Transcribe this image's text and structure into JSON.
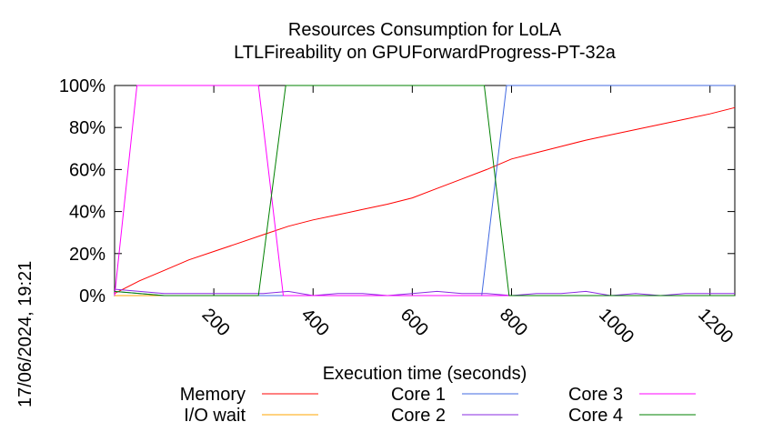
{
  "chart_data": {
    "type": "line",
    "title": "Resources Consumption for LoLA",
    "subtitle": "LTLFireability on GPUForwardProgress-PT-32a",
    "xlabel": "Execution time (seconds)",
    "ylabel": "",
    "timestamp": "17/06/2024, 19:21",
    "xlim": [
      0,
      1250
    ],
    "ylim": [
      0,
      100
    ],
    "xticks": [
      200,
      400,
      600,
      800,
      1000,
      1200
    ],
    "yticks": [
      0,
      20,
      40,
      60,
      80,
      100
    ],
    "ytick_suffix": "%",
    "grid": false,
    "legend_position": "bottom",
    "series": [
      {
        "name": "Memory",
        "color": "#ff0000",
        "x": [
          0,
          50,
          100,
          150,
          200,
          250,
          300,
          350,
          400,
          450,
          500,
          550,
          600,
          650,
          700,
          750,
          800,
          850,
          900,
          950,
          1000,
          1050,
          1100,
          1150,
          1200,
          1250
        ],
        "y": [
          1,
          7,
          12,
          17,
          21,
          25,
          29,
          33,
          36,
          38.5,
          41,
          43.5,
          46.5,
          51,
          55.5,
          60,
          65,
          68,
          71,
          74,
          76.5,
          79,
          81.5,
          84,
          86.5,
          89.5
        ]
      },
      {
        "name": "I/O wait",
        "color": "#ffa500",
        "x": [
          0,
          1250
        ],
        "y": [
          0,
          0
        ]
      },
      {
        "name": "Core 1",
        "color": "#4169e1",
        "x": [
          0,
          50,
          100,
          200,
          300,
          400,
          500,
          600,
          700,
          740,
          790,
          850,
          1000,
          1250
        ],
        "y": [
          2,
          1,
          0,
          0,
          0,
          0,
          0,
          0,
          0,
          0,
          100,
          100,
          100,
          100
        ]
      },
      {
        "name": "Core 2",
        "color": "#8a2be2",
        "x": [
          0,
          50,
          100,
          150,
          200,
          250,
          300,
          350,
          400,
          450,
          500,
          550,
          600,
          650,
          700,
          750,
          800,
          850,
          900,
          950,
          1000,
          1050,
          1100,
          1150,
          1200,
          1250
        ],
        "y": [
          3,
          2,
          1,
          1,
          1,
          1,
          1,
          2,
          0,
          1,
          1,
          0,
          1,
          2,
          1,
          1,
          0,
          1,
          1,
          2,
          0,
          1,
          0,
          1,
          1,
          1
        ]
      },
      {
        "name": "Core 3",
        "color": "#ff00ff",
        "x": [
          0,
          45,
          100,
          200,
          290,
          340,
          400,
          600,
          800,
          1000,
          1250
        ],
        "y": [
          0,
          100,
          100,
          100,
          100,
          0,
          0,
          0,
          0,
          0,
          0
        ]
      },
      {
        "name": "Core 4",
        "color": "#008000",
        "x": [
          0,
          100,
          200,
          290,
          345,
          400,
          600,
          745,
          795,
          850,
          1000,
          1250
        ],
        "y": [
          2,
          0,
          0,
          0,
          100,
          100,
          100,
          100,
          0,
          0,
          0,
          0
        ]
      }
    ]
  }
}
